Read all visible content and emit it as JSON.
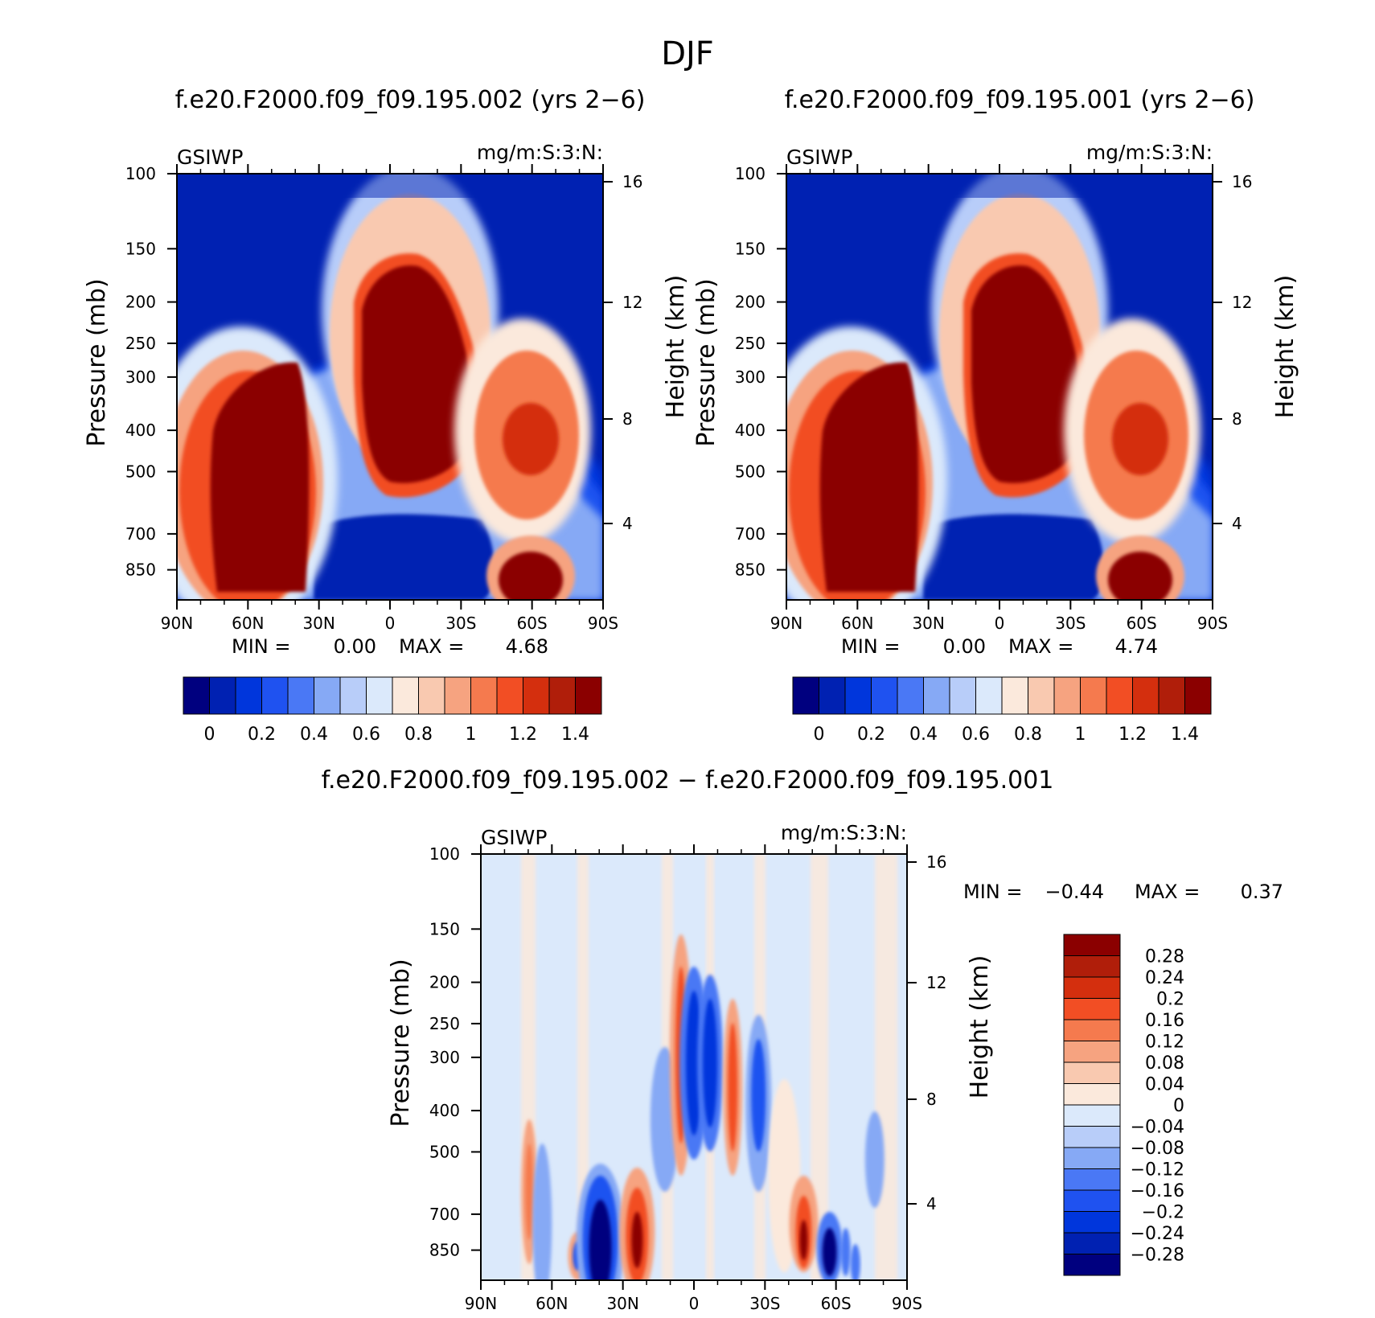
{
  "figure_title": "DJF",
  "colors": {
    "abs_levels": [
      "#00007f",
      "#0021b2",
      "#0036dc",
      "#1f52f0",
      "#4a78f5",
      "#86a9f5",
      "#b8cdf9",
      "#dbe9fb",
      "#fbe9dc",
      "#f9c9b0",
      "#f6a380",
      "#f57a4e",
      "#f24e24",
      "#d42f0e",
      "#b01e0a",
      "#8b0000"
    ],
    "diff_levels": [
      "#00007f",
      "#0021b2",
      "#0036dc",
      "#1f52f0",
      "#4a78f5",
      "#86a9f5",
      "#b8cdf9",
      "#dbe9fb",
      "#fbe9dc",
      "#f9c9b0",
      "#f6a380",
      "#f57a4e",
      "#f24e24",
      "#d42f0e",
      "#b01e0a",
      "#8b0000"
    ]
  },
  "chart_data": [
    {
      "type": "heatmap",
      "title": "f.e20.F2000.f09_f09.195.002 (yrs 2−6)",
      "variable": "GSIWP",
      "units": "mg/m:S:3:N:",
      "xlabel": "",
      "ylabel": "Pressure (mb)",
      "y2label": "Height (km)",
      "x_ticks": [
        "90N",
        "60N",
        "30N",
        "0",
        "30S",
        "60S",
        "90S"
      ],
      "y_ticks": [
        100,
        150,
        200,
        250,
        300,
        400,
        500,
        700,
        850
      ],
      "y2_ticks": [
        16,
        12,
        8,
        4
      ],
      "ylim": [
        100,
        1000
      ],
      "min_label": "MIN =",
      "min_value": "0.00",
      "max_label": "MAX =",
      "max_value": "4.68",
      "colorbar_labels": [
        "0",
        "0.2",
        "0.4",
        "0.6",
        "0.8",
        "1",
        "1.2",
        "1.4"
      ],
      "colorbar_levels": [
        0,
        0.1,
        0.2,
        0.3,
        0.4,
        0.5,
        0.6,
        0.7,
        0.8,
        0.9,
        1.0,
        1.1,
        1.2,
        1.3,
        1.4
      ],
      "field": "blobs: lat 68N-35N 850-300mb max; lat 0-25S 580-160mb max; lat 40S-65S 300-500mb moderate; 55S-65S 700-850mb max"
    },
    {
      "type": "heatmap",
      "title": "f.e20.F2000.f09_f09.195.001 (yrs 2−6)",
      "variable": "GSIWP",
      "units": "mg/m:S:3:N:",
      "xlabel": "",
      "ylabel": "Pressure (mb)",
      "y2label": "Height (km)",
      "x_ticks": [
        "90N",
        "60N",
        "30N",
        "0",
        "30S",
        "60S",
        "90S"
      ],
      "y_ticks": [
        100,
        150,
        200,
        250,
        300,
        400,
        500,
        700,
        850
      ],
      "y2_ticks": [
        16,
        12,
        8,
        4
      ],
      "ylim": [
        100,
        1000
      ],
      "min_label": "MIN =",
      "min_value": "0.00",
      "max_label": "MAX =",
      "max_value": "4.74",
      "colorbar_labels": [
        "0",
        "0.2",
        "0.4",
        "0.6",
        "0.8",
        "1",
        "1.2",
        "1.4"
      ],
      "colorbar_levels": [
        0,
        0.1,
        0.2,
        0.3,
        0.4,
        0.5,
        0.6,
        0.7,
        0.8,
        0.9,
        1.0,
        1.1,
        1.2,
        1.3,
        1.4
      ]
    },
    {
      "type": "heatmap",
      "title": "f.e20.F2000.f09_f09.195.002 − f.e20.F2000.f09_f09.195.001",
      "variable": "GSIWP",
      "units": "mg/m:S:3:N:",
      "xlabel": "",
      "ylabel": "Pressure (mb)",
      "y2label": "Height (km)",
      "x_ticks": [
        "90N",
        "60N",
        "30N",
        "0",
        "30S",
        "60S",
        "90S"
      ],
      "y_ticks": [
        100,
        150,
        200,
        250,
        300,
        400,
        500,
        700,
        850
      ],
      "y2_ticks": [
        16,
        12,
        8,
        4
      ],
      "ylim": [
        100,
        1000
      ],
      "min_label": "MIN =",
      "min_value": "−0.44",
      "max_label": "MAX =",
      "max_value": "0.37",
      "colorbar_labels": [
        "0.28",
        "0.24",
        "0.2",
        "0.16",
        "0.12",
        "0.08",
        "0.04",
        "0",
        "−0.04",
        "−0.08",
        "−0.12",
        "−0.16",
        "−0.2",
        "−0.24",
        "−0.28"
      ],
      "colorbar_levels": [
        0.28,
        0.24,
        0.2,
        0.16,
        0.12,
        0.08,
        0.04,
        0,
        -0.04,
        -0.08,
        -0.12,
        -0.16,
        -0.2,
        -0.24,
        -0.28
      ]
    }
  ]
}
